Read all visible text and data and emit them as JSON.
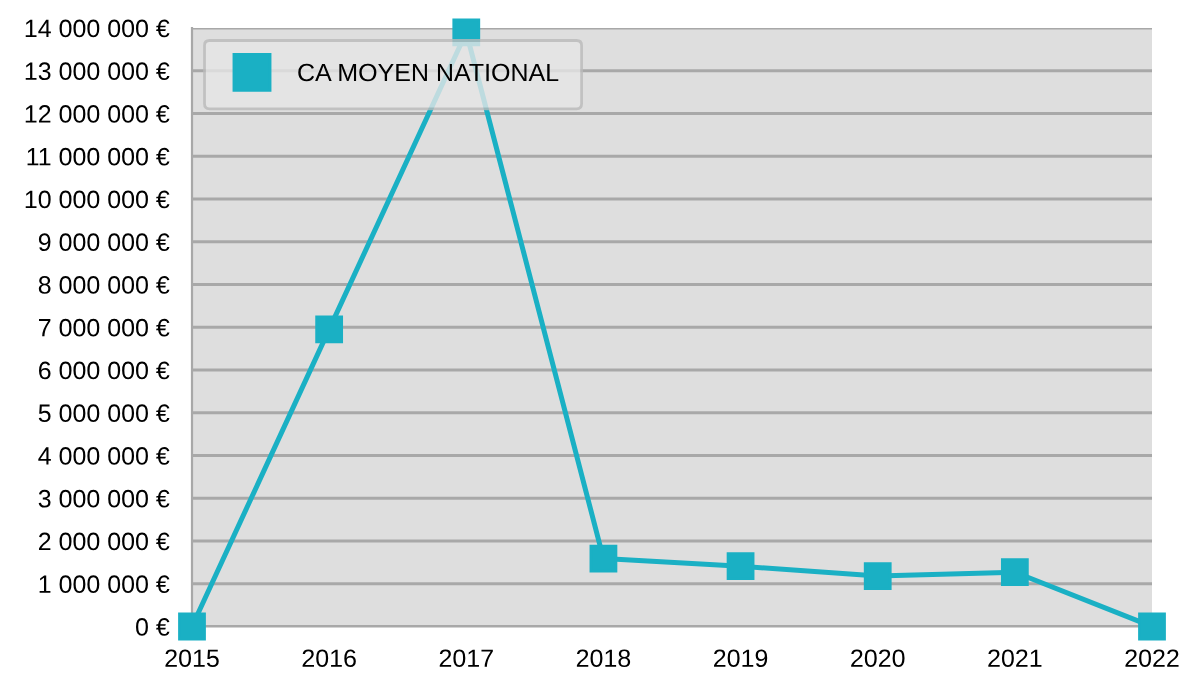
{
  "chart_data": {
    "type": "line",
    "categories": [
      "2015",
      "2016",
      "2017",
      "2018",
      "2019",
      "2020",
      "2021",
      "2022"
    ],
    "series": [
      {
        "name": "CA MOYEN NATIONAL",
        "color": "#1ab0c4",
        "values": [
          0,
          6950000,
          13900000,
          1590000,
          1410000,
          1180000,
          1270000,
          0
        ]
      }
    ],
    "ylim": [
      0,
      14000000
    ],
    "yticks": [
      {
        "value": 0,
        "label": "0 €"
      },
      {
        "value": 1000000,
        "label": "1 000 000 €"
      },
      {
        "value": 2000000,
        "label": "2 000 000 €"
      },
      {
        "value": 3000000,
        "label": "3 000 000 €"
      },
      {
        "value": 4000000,
        "label": "4 000 000 €"
      },
      {
        "value": 5000000,
        "label": "5 000 000 €"
      },
      {
        "value": 6000000,
        "label": "6 000 000 €"
      },
      {
        "value": 7000000,
        "label": "7 000 000 €"
      },
      {
        "value": 8000000,
        "label": "8 000 000 €"
      },
      {
        "value": 9000000,
        "label": "9 000 000 €"
      },
      {
        "value": 10000000,
        "label": "10 000 000 €"
      },
      {
        "value": 11000000,
        "label": "11 000 000 €"
      },
      {
        "value": 12000000,
        "label": "12 000 000 €"
      },
      {
        "value": 13000000,
        "label": "13 000 000 €"
      },
      {
        "value": 14000000,
        "label": "14 000 000 €"
      }
    ],
    "grid": "y",
    "legend": "top left",
    "marker": "square",
    "line_style": "solid"
  }
}
